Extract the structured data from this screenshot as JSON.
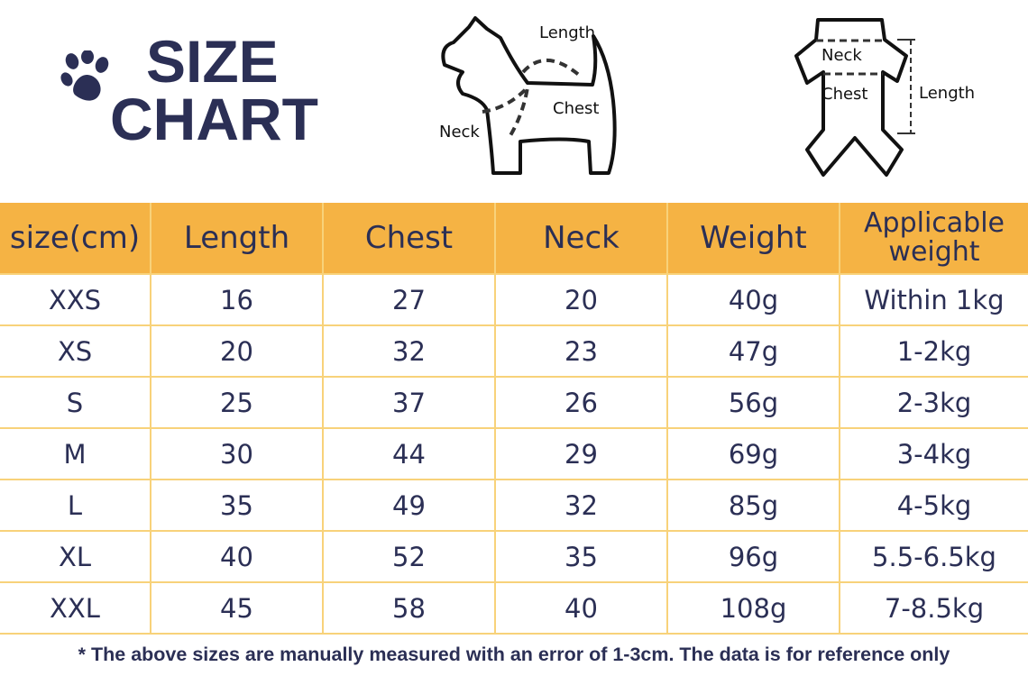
{
  "header": {
    "title_line1": "SIZE",
    "title_line2": "CHART",
    "icon": "paw-icon"
  },
  "diagrams": {
    "dog": {
      "length": "Length",
      "chest": "Chest",
      "neck": "Neck"
    },
    "garment": {
      "neck": "Neck",
      "chest": "Chest",
      "length": "Length"
    }
  },
  "colors": {
    "header_bg": "#f5b344",
    "text": "#2b2f55",
    "grid": "#f8d27a"
  },
  "table": {
    "columns": [
      "size(cm)",
      "Length",
      "Chest",
      "Neck",
      "Weight",
      "Applicable weight"
    ],
    "rows": [
      [
        "XXS",
        "16",
        "27",
        "20",
        "40g",
        "Within 1kg"
      ],
      [
        "XS",
        "20",
        "32",
        "23",
        "47g",
        "1-2kg"
      ],
      [
        "S",
        "25",
        "37",
        "26",
        "56g",
        "2-3kg"
      ],
      [
        "M",
        "30",
        "44",
        "29",
        "69g",
        "3-4kg"
      ],
      [
        "L",
        "35",
        "49",
        "32",
        "85g",
        "4-5kg"
      ],
      [
        "XL",
        "40",
        "52",
        "35",
        "96g",
        "5.5-6.5kg"
      ],
      [
        "XXL",
        "45",
        "58",
        "40",
        "108g",
        "7-8.5kg"
      ]
    ]
  },
  "footnote": "* The above sizes are manually measured with an error of 1-3cm. The data is for reference only"
}
